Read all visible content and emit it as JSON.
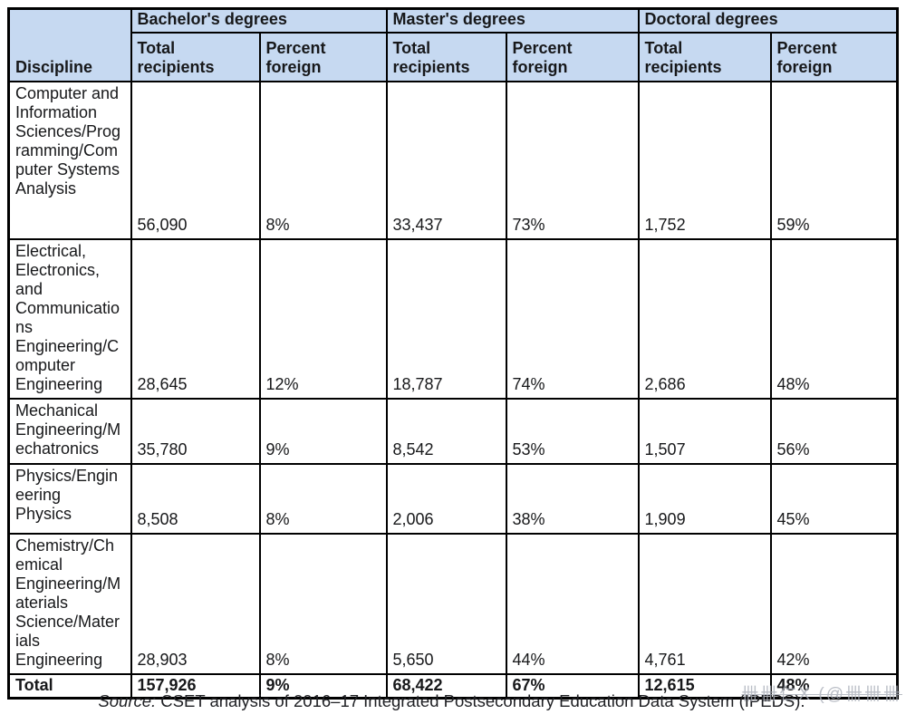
{
  "chart_data": {
    "type": "table",
    "degree_groups": [
      {
        "label": "Bachelor's degrees"
      },
      {
        "label": "Master's degrees"
      },
      {
        "label": "Doctoral degrees"
      }
    ],
    "discipline_header": "Discipline",
    "subcolumn_headers": {
      "total": "Total\nrecipients",
      "percent": "Percent\nforeign"
    },
    "rows": [
      {
        "discipline": "Computer and Information Sciences/Programming/Computer Systems Analysis",
        "bachelors_total": "56,090",
        "bachelors_pct_foreign": "8%",
        "masters_total": "33,437",
        "masters_pct_foreign": "73%",
        "doctoral_total": "1,752",
        "doctoral_pct_foreign": "59%"
      },
      {
        "discipline": "Electrical, Electronics, and Communications Engineering/Computer Engineering",
        "bachelors_total": "28,645",
        "bachelors_pct_foreign": "12%",
        "masters_total": "18,787",
        "masters_pct_foreign": "74%",
        "doctoral_total": "2,686",
        "doctoral_pct_foreign": "48%"
      },
      {
        "discipline": "Mechanical Engineering/Mechatronics",
        "bachelors_total": "35,780",
        "bachelors_pct_foreign": "9%",
        "masters_total": "8,542",
        "masters_pct_foreign": "53%",
        "doctoral_total": "1,507",
        "doctoral_pct_foreign": "56%"
      },
      {
        "discipline": "Physics/Engineering Physics",
        "bachelors_total": "8,508",
        "bachelors_pct_foreign": "8%",
        "masters_total": "2,006",
        "masters_pct_foreign": "38%",
        "doctoral_total": "1,909",
        "doctoral_pct_foreign": "45%"
      },
      {
        "discipline": "Chemistry/Chemical Engineering/Materials Science/Materials Engineering",
        "bachelors_total": "28,903",
        "bachelors_pct_foreign": "8%",
        "masters_total": "5,650",
        "masters_pct_foreign": "44%",
        "doctoral_total": "4,761",
        "doctoral_pct_foreign": "42%"
      }
    ],
    "total_row": {
      "label": "Total",
      "bachelors_total": "157,926",
      "bachelors_pct_foreign": "9%",
      "masters_total": "68,422",
      "masters_pct_foreign": "67%",
      "doctoral_total": "12,615",
      "doctoral_pct_foreign": "48%"
    },
    "source_note": {
      "prefix": "Source:",
      "body": " CSET analysis of 2016–17 Integrated Postsecondary Education Data System (IPEDS)."
    }
  },
  "watermark": {
    "text": "卌卌仁X (@卌卌卌"
  },
  "colors": {
    "header_bg": "#c6d9f1",
    "border": "#000000",
    "text": "#17181a",
    "watermark": "#a9aeb9"
  }
}
